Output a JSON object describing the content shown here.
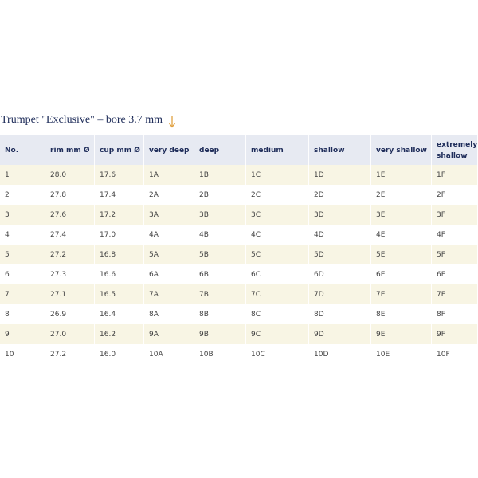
{
  "title": "Trumpet \"Exclusive\" – bore 3.7 mm",
  "table": {
    "header": [
      "No.",
      "rim mm Ø",
      "cup mm Ø",
      "very deep",
      "deep",
      "medium",
      "shallow",
      "very shallow",
      "extremely shallow"
    ],
    "rows": [
      [
        "1",
        "28.0",
        "17.6",
        "1A",
        "1B",
        "1C",
        "1D",
        "1E",
        "1F"
      ],
      [
        "2",
        "27.8",
        "17.4",
        "2A",
        "2B",
        "2C",
        "2D",
        "2E",
        "2F"
      ],
      [
        "3",
        "27.6",
        "17.2",
        "3A",
        "3B",
        "3C",
        "3D",
        "3E",
        "3F"
      ],
      [
        "4",
        "27.4",
        "17.0",
        "4A",
        "4B",
        "4C",
        "4D",
        "4E",
        "4F"
      ],
      [
        "5",
        "27.2",
        "16.8",
        "5A",
        "5B",
        "5C",
        "5D",
        "5E",
        "5F"
      ],
      [
        "6",
        "27.3",
        "16.6",
        "6A",
        "6B",
        "6C",
        "6D",
        "6E",
        "6F"
      ],
      [
        "7",
        "27.1",
        "16.5",
        "7A",
        "7B",
        "7C",
        "7D",
        "7E",
        "7F"
      ],
      [
        "8",
        "26.9",
        "16.4",
        "8A",
        "8B",
        "8C",
        "8D",
        "8E",
        "8F"
      ],
      [
        "9",
        "27.0",
        "16.2",
        "9A",
        "9B",
        "9C",
        "9D",
        "9E",
        "9F"
      ],
      [
        "10",
        "27.2",
        "16.0",
        "10A",
        "10B",
        "10C",
        "10D",
        "10E",
        "10F"
      ]
    ]
  }
}
